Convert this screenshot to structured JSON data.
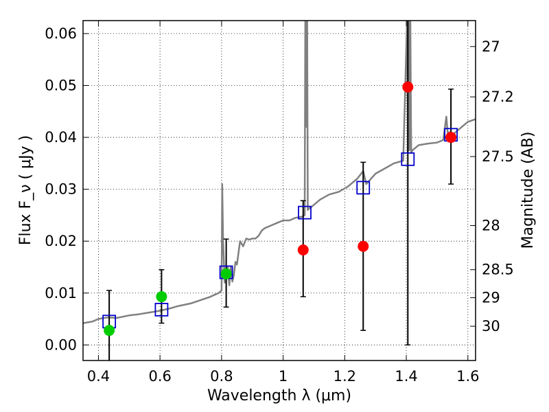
{
  "chart_data": {
    "type": "scatter",
    "xlabel": "Wavelength  λ (μm)",
    "ylabel": "Flux  F_ν  ( μJy )",
    "ylabel_right": "Magnitude (AB)",
    "xlim": [
      0.35,
      1.625
    ],
    "ylim": [
      -0.003,
      0.0625
    ],
    "grid": true,
    "x_ticks": [
      0.4,
      0.6,
      0.8,
      1.0,
      1.2,
      1.4,
      1.6
    ],
    "x_tick_labels": [
      "0.4",
      "0.6",
      "0.8",
      "1",
      "1.2",
      "1.4",
      "1.6"
    ],
    "y_ticks": [
      0.0,
      0.01,
      0.02,
      0.03,
      0.04,
      0.05,
      0.06
    ],
    "y_tick_labels": [
      "0.00",
      "0.01",
      "0.02",
      "0.03",
      "0.04",
      "0.05",
      "0.06"
    ],
    "right_ticks": [
      {
        "flux": 0.0575,
        "label": "27"
      },
      {
        "flux": 0.0478,
        "label": "27.2"
      },
      {
        "flux": 0.0363,
        "label": "27.5"
      },
      {
        "flux": 0.023,
        "label": "28"
      },
      {
        "flux": 0.0145,
        "label": "28.5"
      },
      {
        "flux": 0.0091,
        "label": "29"
      },
      {
        "flux": 0.0036,
        "label": "30"
      }
    ],
    "series": [
      {
        "kind": "line",
        "color": "#808080",
        "x": [
          0.35,
          0.38,
          0.4,
          0.43,
          0.46,
          0.5,
          0.53,
          0.56,
          0.6,
          0.63,
          0.66,
          0.7,
          0.73,
          0.76,
          0.79,
          0.8,
          0.802,
          0.805,
          0.81,
          0.815,
          0.82,
          0.825,
          0.83,
          0.835,
          0.84,
          0.845,
          0.85,
          0.86,
          0.87,
          0.88,
          0.89,
          0.9,
          0.91,
          0.92,
          0.93,
          0.94,
          0.96,
          0.98,
          1.0,
          1.02,
          1.04,
          1.06,
          1.07,
          1.072,
          1.075,
          1.078,
          1.08,
          1.082,
          1.09,
          1.12,
          1.15,
          1.18,
          1.21,
          1.24,
          1.26,
          1.27,
          1.3,
          1.33,
          1.36,
          1.39,
          1.403,
          1.405,
          1.407,
          1.41,
          1.413,
          1.416,
          1.42,
          1.44,
          1.47,
          1.5,
          1.52,
          1.53,
          1.535,
          1.54,
          1.55,
          1.58,
          1.6,
          1.625
        ],
        "y": [
          0.0042,
          0.0045,
          0.005,
          0.0053,
          0.0052,
          0.0057,
          0.0059,
          0.0062,
          0.0066,
          0.007,
          0.0075,
          0.008,
          0.0086,
          0.0092,
          0.01,
          0.0105,
          0.031,
          0.02,
          0.012,
          0.0135,
          0.015,
          0.0115,
          0.015,
          0.0122,
          0.0135,
          0.016,
          0.0155,
          0.02,
          0.019,
          0.0205,
          0.0203,
          0.0205,
          0.0205,
          0.021,
          0.022,
          0.0225,
          0.023,
          0.0235,
          0.024,
          0.024,
          0.0245,
          0.0247,
          0.025,
          0.064,
          0.042,
          0.064,
          0.026,
          0.0262,
          0.0265,
          0.028,
          0.029,
          0.0295,
          0.0305,
          0.032,
          0.0335,
          0.031,
          0.033,
          0.034,
          0.035,
          0.0355,
          0.064,
          0.037,
          0.064,
          0.0375,
          0.064,
          0.037,
          0.0375,
          0.0385,
          0.0388,
          0.039,
          0.0395,
          0.044,
          0.0405,
          0.041,
          0.0405,
          0.042,
          0.043,
          0.0435
        ]
      },
      {
        "kind": "model",
        "marker": "open-square",
        "color": "#0000cc",
        "x": [
          0.435,
          0.605,
          0.815,
          1.07,
          1.26,
          1.405,
          1.545
        ],
        "y": [
          0.0045,
          0.0068,
          0.014,
          0.0255,
          0.0303,
          0.0358,
          0.0405
        ]
      },
      {
        "kind": "observed",
        "marker": "filled-circle",
        "color": "#00cc00",
        "x": [
          0.435,
          0.605,
          0.815
        ],
        "y": [
          0.0028,
          0.0093,
          0.0137
        ],
        "err_low": [
          0.0058,
          0.0051,
          0.0064
        ],
        "err_high": [
          0.0077,
          0.0052,
          0.0067
        ]
      },
      {
        "kind": "observed",
        "marker": "filled-circle",
        "color": "#ff0000",
        "x": [
          1.065,
          1.26,
          1.405,
          1.545
        ],
        "y": [
          0.0183,
          0.019,
          0.0497,
          0.04
        ],
        "err_low": [
          0.009,
          0.0162,
          0.0497,
          0.009
        ],
        "err_high": [
          0.0095,
          0.0162,
          0.02,
          0.0093
        ]
      }
    ]
  }
}
